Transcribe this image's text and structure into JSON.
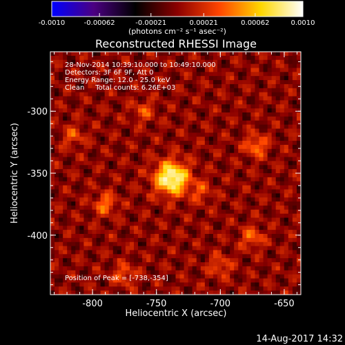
{
  "colorbar": {
    "ticks": [
      "-0.0010",
      "-0.00062",
      "-0.00021",
      "0.00021",
      "0.00062",
      "0.0010"
    ],
    "tick_values": [
      -0.001,
      -0.00062,
      -0.00021,
      0.00021,
      0.00062,
      0.001
    ],
    "range": [
      -0.001,
      0.001
    ],
    "units_label": "(photons cm⁻² s⁻¹ asec⁻²)"
  },
  "info": {
    "line1": "28-Nov-2014 10:39:10.000 to 10:49:10.000",
    "line2": "Detectors: 3F 6F 9F, Att 0",
    "line3": "Energy Range: 12.0 - 25.0 keV",
    "line4": "Clean     Total counts: 6.26E+03",
    "peak": "Position of Peak = [-738,-354]"
  },
  "footer": {
    "timestamp": "14-Aug-2017 14:32"
  },
  "colors": {
    "background": "#000000",
    "axes": "#ffffff",
    "text": "#ffffff"
  },
  "chart_data": {
    "type": "heatmap",
    "title": "Reconstructed RHESSI Image",
    "xlabel": "Heliocentric X (arcsec)",
    "ylabel": "Heliocentric Y (arcsec)",
    "xlim": [
      -833,
      -637
    ],
    "ylim": [
      -448,
      -252
    ],
    "xticks": [
      -800,
      -750,
      -700,
      -650
    ],
    "yticks": [
      -300,
      -350,
      -400
    ],
    "xtick_labels": [
      "-800",
      "-750",
      "-700",
      "-650"
    ],
    "ytick_labels": [
      "-300",
      "-350",
      "-400"
    ],
    "peak_position": [
      -738,
      -354
    ],
    "sources": [
      {
        "x": -738,
        "y": -354,
        "intensity": 1.0
      },
      {
        "x": -672,
        "y": -328,
        "intensity": 0.45
      },
      {
        "x": -790,
        "y": -375,
        "intensity": 0.42
      },
      {
        "x": -675,
        "y": -402,
        "intensity": 0.38
      },
      {
        "x": -775,
        "y": -432,
        "intensity": 0.34
      },
      {
        "x": -700,
        "y": -425,
        "intensity": 0.32
      },
      {
        "x": -815,
        "y": -320,
        "intensity": 0.3
      },
      {
        "x": -760,
        "y": -300,
        "intensity": 0.3
      },
      {
        "x": -715,
        "y": -365,
        "intensity": 0.28
      }
    ],
    "colormap": [
      "#0000ff",
      "#4b0082",
      "#000000",
      "#8b0000",
      "#ff4500",
      "#ffd700",
      "#ffffff"
    ]
  }
}
